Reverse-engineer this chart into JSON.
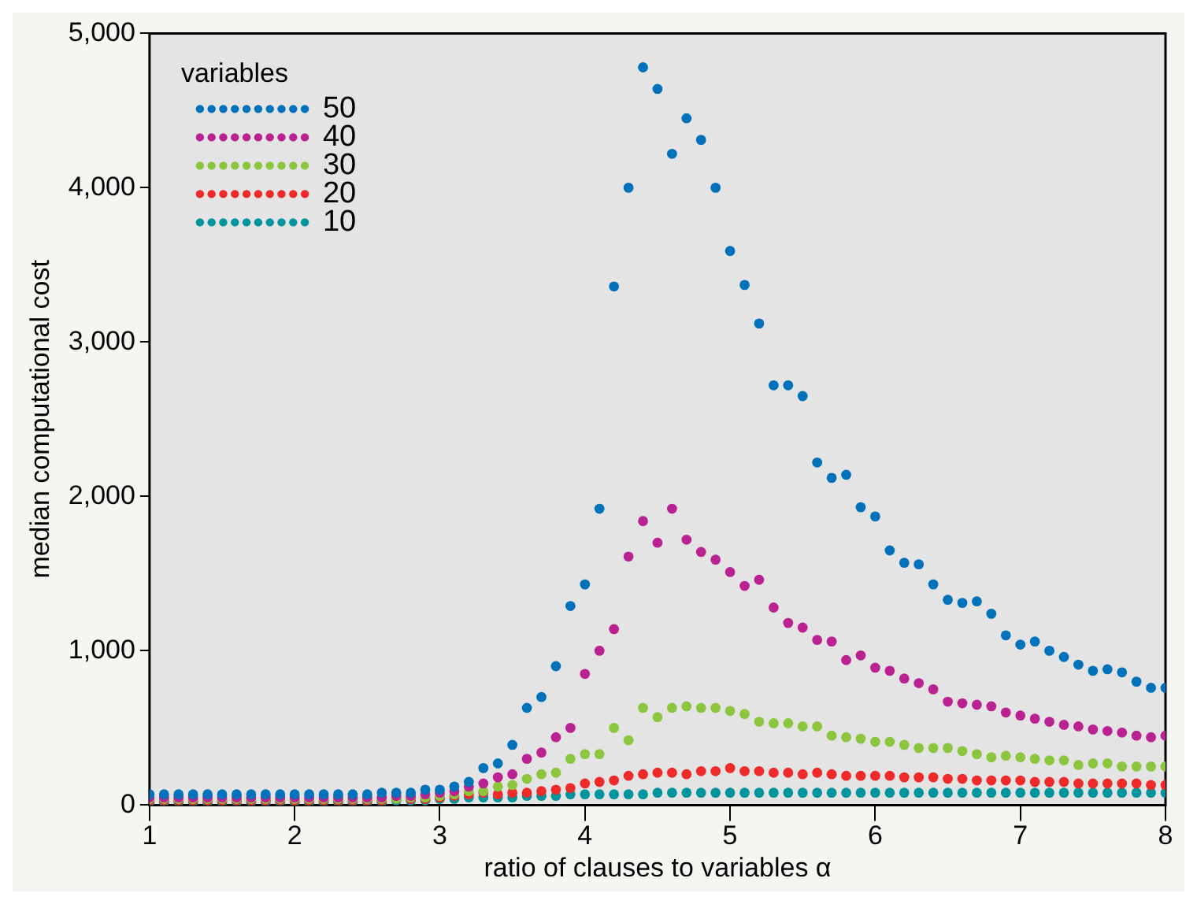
{
  "chart_data": {
    "type": "scatter",
    "xlabel": "ratio of clauses to variables α",
    "ylabel": "median computational cost",
    "legend_title": "variables",
    "legend": "top left",
    "grid": false,
    "marker": "circle",
    "x": [
      1.0,
      1.1,
      1.2,
      1.3,
      1.4,
      1.5,
      1.6,
      1.7,
      1.8,
      1.9,
      2.0,
      2.1,
      2.2,
      2.3,
      2.4,
      2.5,
      2.6,
      2.7,
      2.8,
      2.9,
      3.0,
      3.1,
      3.2,
      3.3,
      3.4,
      3.5,
      3.6,
      3.7,
      3.8,
      3.9,
      4.0,
      4.1,
      4.2,
      4.3,
      4.4,
      4.5,
      4.6,
      4.7,
      4.8,
      4.9,
      5.0,
      5.1,
      5.2,
      5.3,
      5.4,
      5.5,
      5.6,
      5.7,
      5.8,
      5.9,
      6.0,
      6.1,
      6.2,
      6.3,
      6.4,
      6.5,
      6.6,
      6.7,
      6.8,
      6.9,
      7.0,
      7.1,
      7.2,
      7.3,
      7.4,
      7.5,
      7.6,
      7.7,
      7.8,
      7.9,
      8.0
    ],
    "xlim": [
      1,
      8
    ],
    "xticks": [
      1,
      2,
      3,
      4,
      5,
      6,
      7,
      8
    ],
    "ylim": [
      0,
      5000
    ],
    "yticks": [
      0,
      {
        "value": 1000,
        "label": "1,000"
      },
      {
        "value": 2000,
        "label": "2,000"
      },
      {
        "value": 3000,
        "label": "3,000"
      },
      {
        "value": 4000,
        "label": "4,000"
      },
      {
        "value": 5000,
        "label": "5,000"
      }
    ],
    "series": [
      {
        "name": "50",
        "color": "#0072bb",
        "values": [
          70,
          70,
          70,
          70,
          70,
          70,
          70,
          70,
          70,
          70,
          70,
          70,
          70,
          70,
          70,
          70,
          80,
          80,
          80,
          100,
          100,
          120,
          150,
          240,
          270,
          390,
          630,
          700,
          900,
          1290,
          1430,
          1920,
          3360,
          4000,
          4780,
          4640,
          4220,
          4450,
          4310,
          4000,
          3590,
          3370,
          3120,
          2720,
          2720,
          2650,
          2220,
          2120,
          2140,
          1930,
          1870,
          1650,
          1570,
          1560,
          1430,
          1330,
          1310,
          1320,
          1240,
          1100,
          1040,
          1060,
          1000,
          960,
          910,
          870,
          880,
          860,
          800,
          760,
          760
        ]
      },
      {
        "name": "40",
        "color": "#bb2291",
        "values": [
          50,
          50,
          50,
          50,
          50,
          50,
          50,
          50,
          50,
          50,
          50,
          50,
          50,
          50,
          50,
          50,
          50,
          60,
          60,
          70,
          80,
          90,
          120,
          140,
          180,
          200,
          300,
          340,
          440,
          500,
          850,
          1000,
          1140,
          1610,
          1840,
          1700,
          1920,
          1720,
          1640,
          1590,
          1510,
          1420,
          1460,
          1280,
          1180,
          1150,
          1070,
          1060,
          940,
          970,
          890,
          870,
          820,
          790,
          750,
          670,
          660,
          650,
          640,
          600,
          580,
          560,
          540,
          520,
          510,
          490,
          480,
          470,
          450,
          440,
          450
        ]
      },
      {
        "name": "30",
        "color": "#8cc63f",
        "values": [
          40,
          40,
          40,
          40,
          40,
          40,
          40,
          40,
          40,
          40,
          40,
          40,
          40,
          40,
          40,
          40,
          40,
          40,
          50,
          50,
          60,
          70,
          90,
          90,
          120,
          130,
          170,
          200,
          210,
          300,
          330,
          330,
          500,
          420,
          630,
          570,
          630,
          640,
          630,
          630,
          610,
          590,
          540,
          530,
          530,
          510,
          510,
          450,
          440,
          430,
          410,
          410,
          390,
          370,
          370,
          370,
          350,
          330,
          310,
          320,
          310,
          300,
          290,
          290,
          260,
          270,
          270,
          250,
          250,
          250,
          250
        ]
      },
      {
        "name": "20",
        "color": "#ee2a2a",
        "values": [
          30,
          30,
          30,
          30,
          30,
          30,
          30,
          30,
          30,
          30,
          30,
          30,
          30,
          30,
          30,
          30,
          30,
          40,
          40,
          40,
          50,
          60,
          70,
          80,
          70,
          80,
          80,
          90,
          100,
          110,
          140,
          150,
          160,
          190,
          200,
          210,
          210,
          200,
          220,
          220,
          240,
          220,
          220,
          210,
          210,
          200,
          210,
          200,
          190,
          190,
          190,
          190,
          180,
          180,
          180,
          170,
          170,
          160,
          160,
          160,
          160,
          150,
          150,
          150,
          140,
          140,
          140,
          140,
          140,
          130,
          130
        ]
      },
      {
        "name": "10",
        "color": "#00959c",
        "values": [
          20,
          20,
          20,
          20,
          20,
          20,
          20,
          20,
          20,
          20,
          20,
          20,
          20,
          20,
          20,
          20,
          20,
          30,
          30,
          30,
          40,
          40,
          50,
          50,
          50,
          50,
          60,
          60,
          60,
          70,
          70,
          70,
          70,
          70,
          70,
          80,
          80,
          80,
          80,
          80,
          80,
          80,
          80,
          80,
          80,
          80,
          80,
          80,
          80,
          80,
          80,
          80,
          80,
          80,
          80,
          80,
          80,
          80,
          80,
          80,
          80,
          80,
          80,
          80,
          80,
          80,
          80,
          80,
          80,
          80,
          80
        ]
      }
    ]
  }
}
